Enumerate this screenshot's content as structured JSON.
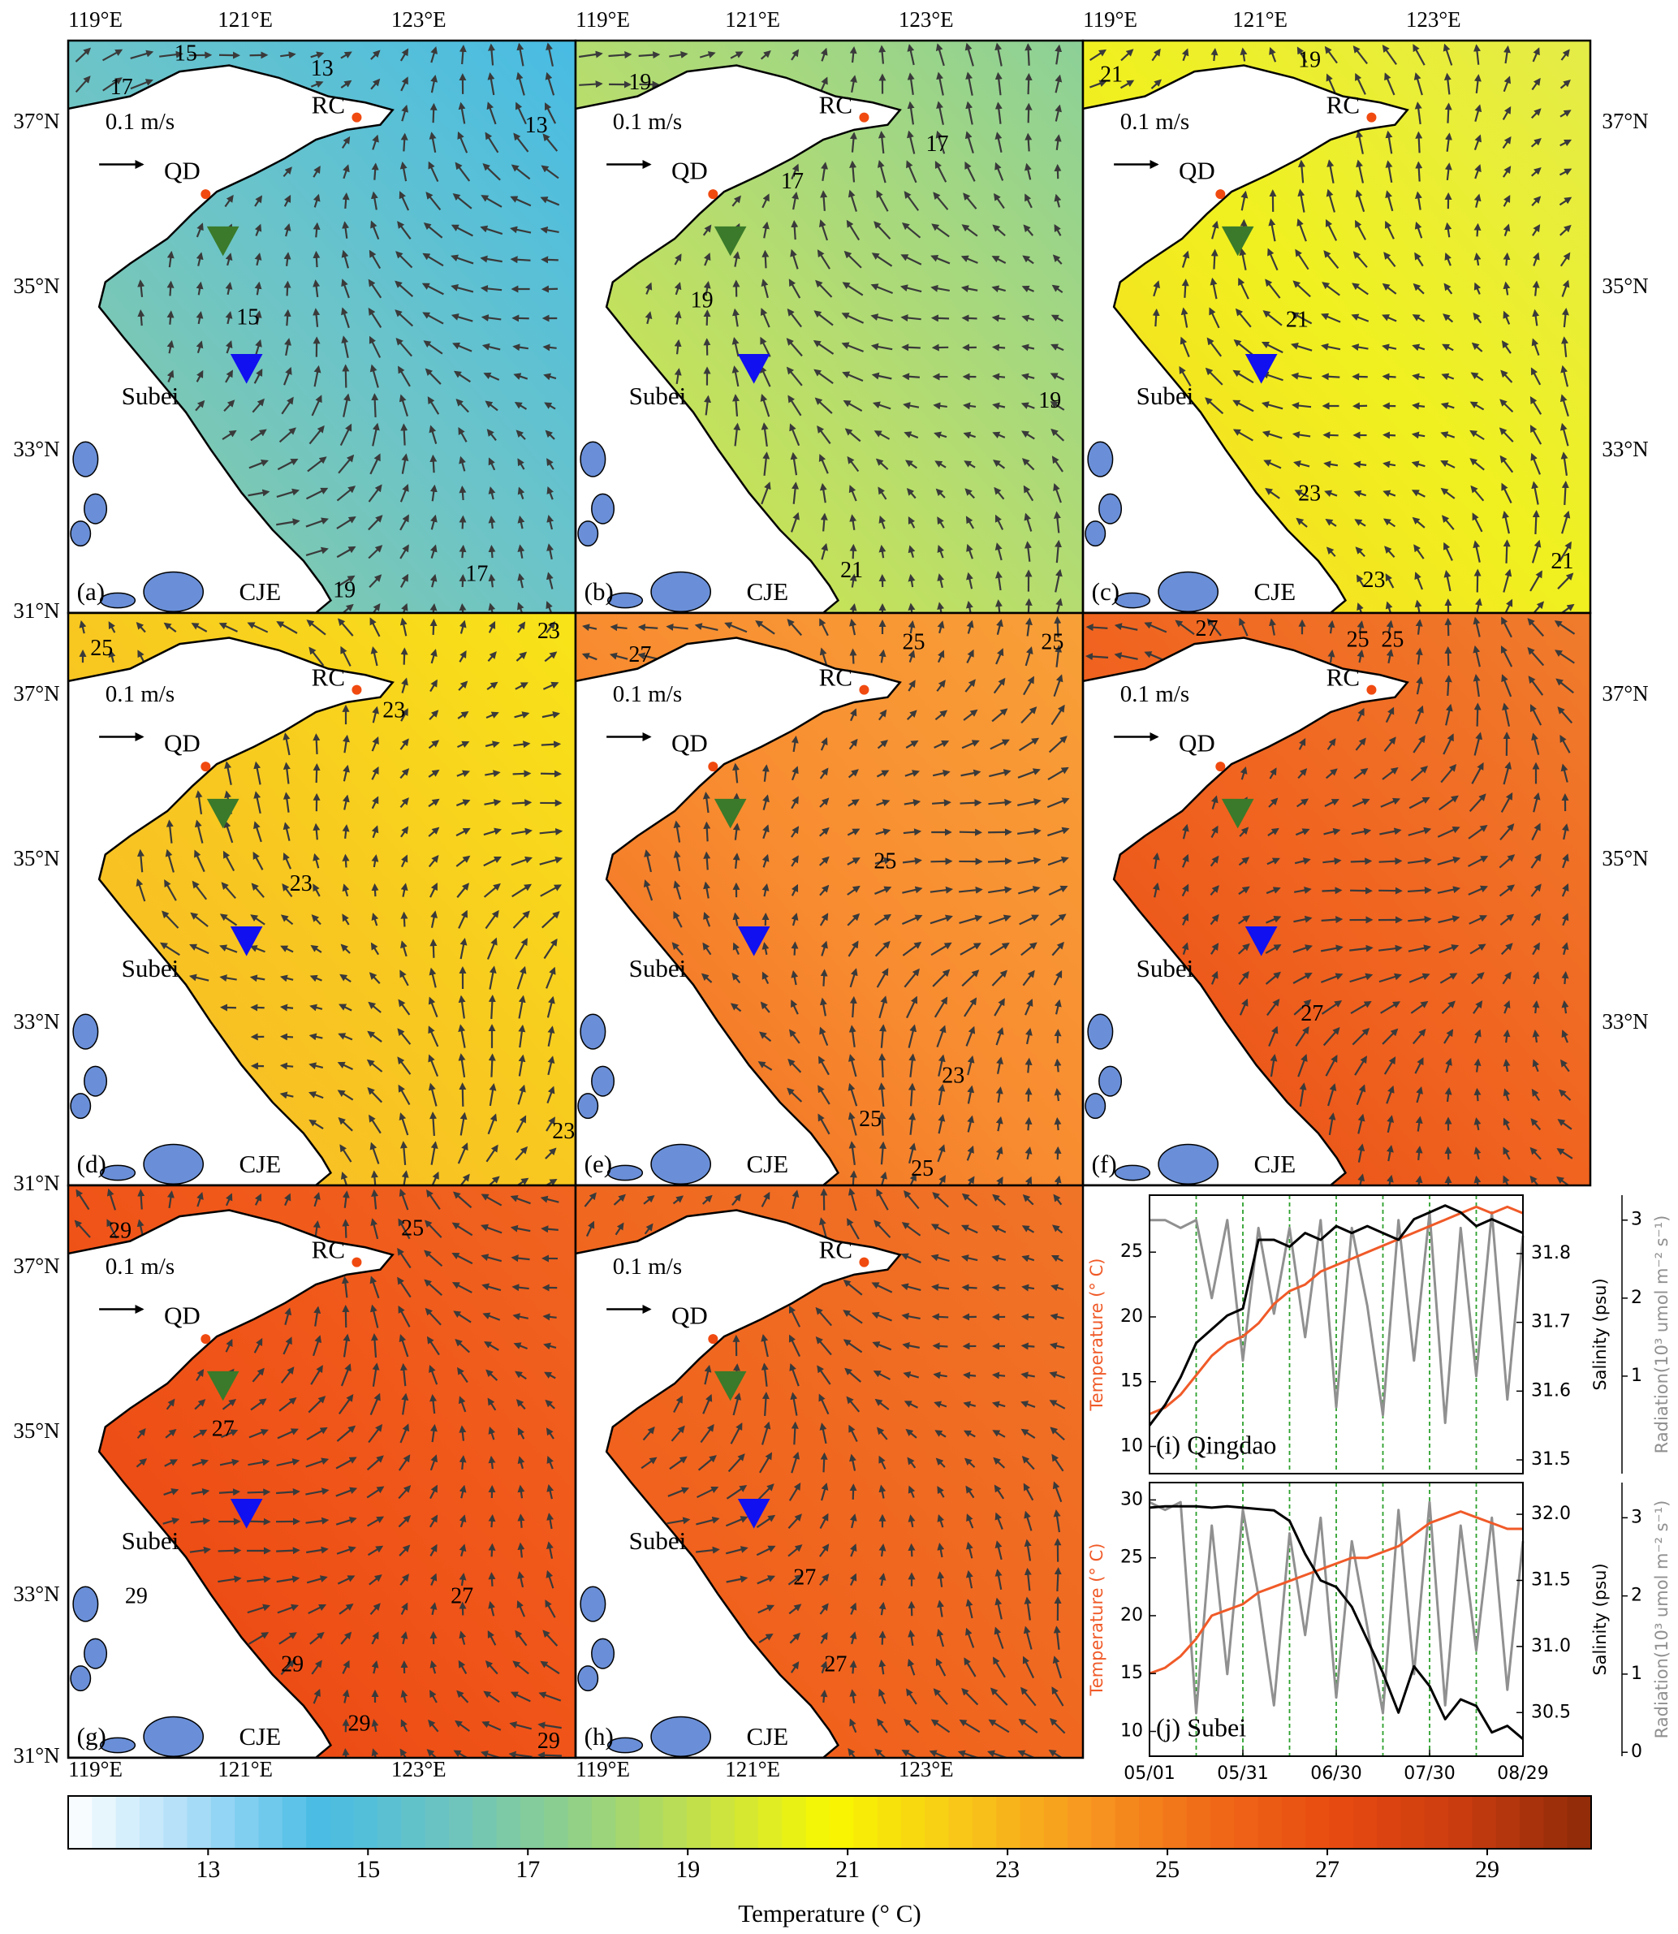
{
  "maps": {
    "lon_labels": [
      "119°E",
      "121°E",
      "123°E"
    ],
    "lat_labels": [
      "37°N",
      "35°N",
      "33°N",
      "31°N"
    ],
    "places": {
      "scale": "0.1 m/s",
      "qd": "QD",
      "rc": "RC",
      "subei": "Subei",
      "cje": "CJE"
    },
    "panels": [
      {
        "label": "(a)",
        "contour_labels": [
          "15",
          "17",
          "13",
          "13",
          "15",
          "19",
          "17"
        ]
      },
      {
        "label": "(b)",
        "contour_labels": [
          "19",
          "17",
          "17",
          "19",
          "19",
          "21"
        ]
      },
      {
        "label": "(c)",
        "contour_labels": [
          "21",
          "19",
          "21",
          "23",
          "23",
          "21"
        ]
      },
      {
        "label": "(d)",
        "contour_labels": [
          "25",
          "23",
          "23",
          "23",
          "23"
        ]
      },
      {
        "label": "(e)",
        "contour_labels": [
          "27",
          "25",
          "25",
          "25",
          "23",
          "25",
          "25"
        ]
      },
      {
        "label": "(f)",
        "contour_labels": [
          "27",
          "25",
          "25",
          "27"
        ]
      },
      {
        "label": "(g)",
        "contour_labels": [
          "29",
          "25",
          "27",
          "29",
          "27",
          "29",
          "29",
          "29"
        ]
      },
      {
        "label": "(h)",
        "contour_labels": [
          "27",
          "27"
        ]
      }
    ]
  },
  "colorbar": {
    "label": "Temperature (° C)",
    "clim": [
      11.25,
      30.3
    ],
    "ticks": [
      13,
      15,
      17,
      19,
      21,
      23,
      25,
      27,
      29
    ],
    "colormap": [
      "#ffffff",
      "#a8dcf8",
      "#48bce4",
      "#6cc4c0",
      "#90d088",
      "#c4e048",
      "#f8f800",
      "#f8c818",
      "#f89820",
      "#f06a18",
      "#e84a10",
      "#c83c10",
      "#8c2a08"
    ]
  },
  "chart_data": [
    {
      "type": "line",
      "title": "(i) Qingdao",
      "y_label": "Temperature (° C)",
      "y2_label": "Salinity (psu)",
      "y3_label": "Radiation(10³ umol m⁻² s⁻¹)",
      "x": [
        0,
        5,
        10,
        15,
        20,
        25,
        30,
        35,
        40,
        45,
        50,
        55,
        60,
        65,
        70,
        75,
        80,
        85,
        90,
        95,
        100,
        105,
        110,
        115,
        120
      ],
      "xlim": [
        0,
        120
      ],
      "period_lines": [
        15,
        30,
        45,
        60,
        75,
        90,
        105
      ],
      "period_color": "#2ca02c",
      "ylim": [
        7.9,
        29.4
      ],
      "yticks": [
        10,
        15,
        20,
        25
      ],
      "y2lim": [
        31.48,
        31.885
      ],
      "y2ticks": [
        31.5,
        31.6,
        31.7,
        31.8
      ],
      "y3lim": [
        -0.25,
        3.32
      ],
      "y3ticks": [
        1,
        2,
        3
      ],
      "series": [
        {
          "axis": "y3",
          "color": "#909090",
          "values": [
            3.0,
            3.0,
            2.9,
            3.0,
            2.0,
            3.0,
            1.2,
            2.9,
            1.8,
            2.9,
            1.5,
            3.0,
            0.6,
            2.9,
            1.9,
            0.5,
            3.0,
            1.2,
            3.1,
            0.4,
            2.9,
            1.0,
            3.1,
            0.7,
            2.8
          ]
        },
        {
          "axis": "y",
          "color": "#f05a28",
          "values": [
            12.5,
            13,
            14,
            15.5,
            17,
            18,
            18.5,
            19.5,
            21,
            22,
            22.5,
            23.5,
            24,
            24.5,
            25,
            25.5,
            26,
            26.5,
            27,
            27.5,
            28,
            28.5,
            28,
            28.5,
            28
          ]
        },
        {
          "axis": "y2",
          "color": "#000000",
          "values": [
            31.55,
            31.58,
            31.62,
            31.67,
            31.69,
            31.71,
            31.72,
            31.82,
            31.82,
            31.81,
            31.83,
            31.82,
            31.84,
            31.83,
            31.84,
            31.83,
            31.82,
            31.85,
            31.86,
            31.87,
            31.86,
            31.84,
            31.85,
            31.84,
            31.83
          ]
        }
      ]
    },
    {
      "type": "line",
      "title": "(j) Subei",
      "y_label": "Temperature (° C)",
      "y2_label": "Salinity (psu)",
      "y3_label": "Radiation(10³ umol m⁻² s⁻¹)",
      "x": [
        0,
        5,
        10,
        15,
        20,
        25,
        30,
        35,
        40,
        45,
        50,
        55,
        60,
        65,
        70,
        75,
        80,
        85,
        90,
        95,
        100,
        105,
        110,
        115,
        120
      ],
      "xlim": [
        0,
        120
      ],
      "xticks": [
        {
          "value": 0,
          "label": "05/01"
        },
        {
          "value": 30,
          "label": "05/31"
        },
        {
          "value": 60,
          "label": "06/30"
        },
        {
          "value": 90,
          "label": "07/30"
        },
        {
          "value": 120,
          "label": "08/29"
        }
      ],
      "period_lines": [
        15,
        30,
        45,
        60,
        75,
        90,
        105
      ],
      "period_color": "#2ca02c",
      "ylim": [
        7.86,
        31.5
      ],
      "yticks": [
        10,
        15,
        20,
        25,
        30
      ],
      "y2lim": [
        30.17,
        32.24
      ],
      "y2ticks": [
        30.5,
        {
          "value": 31,
          "label": "31.0"
        },
        31.5,
        {
          "value": 32,
          "label": "32.0"
        }
      ],
      "y3lim": [
        -0.05,
        3.45
      ],
      "y3ticks": [
        0,
        1,
        2,
        3
      ],
      "series": [
        {
          "axis": "y3",
          "color": "#909090",
          "values": [
            3.2,
            3.1,
            3.2,
            0.5,
            2.9,
            1.0,
            3.1,
            2.0,
            0.6,
            2.8,
            1.5,
            3.0,
            0.7,
            2.7,
            1.6,
            0.5,
            3.1,
            1.0,
            3.2,
            0.6,
            2.9,
            1.3,
            3.0,
            0.8,
            2.7
          ]
        },
        {
          "axis": "y",
          "color": "#f05a28",
          "values": [
            15,
            15.5,
            16.5,
            18,
            20,
            20.5,
            21,
            22,
            22.5,
            23,
            23.5,
            24,
            24.5,
            25,
            25,
            25.5,
            26,
            27,
            28,
            28.5,
            29,
            28.5,
            28,
            27.5,
            27.5
          ]
        },
        {
          "axis": "y2",
          "color": "#000000",
          "values": [
            32.05,
            32.06,
            32.06,
            32.06,
            32.05,
            32.06,
            32.05,
            32.04,
            32.03,
            31.95,
            31.7,
            31.5,
            31.45,
            31.3,
            31.05,
            30.8,
            30.5,
            30.85,
            30.7,
            30.45,
            30.6,
            30.55,
            30.35,
            30.4,
            30.3
          ]
        }
      ]
    }
  ]
}
